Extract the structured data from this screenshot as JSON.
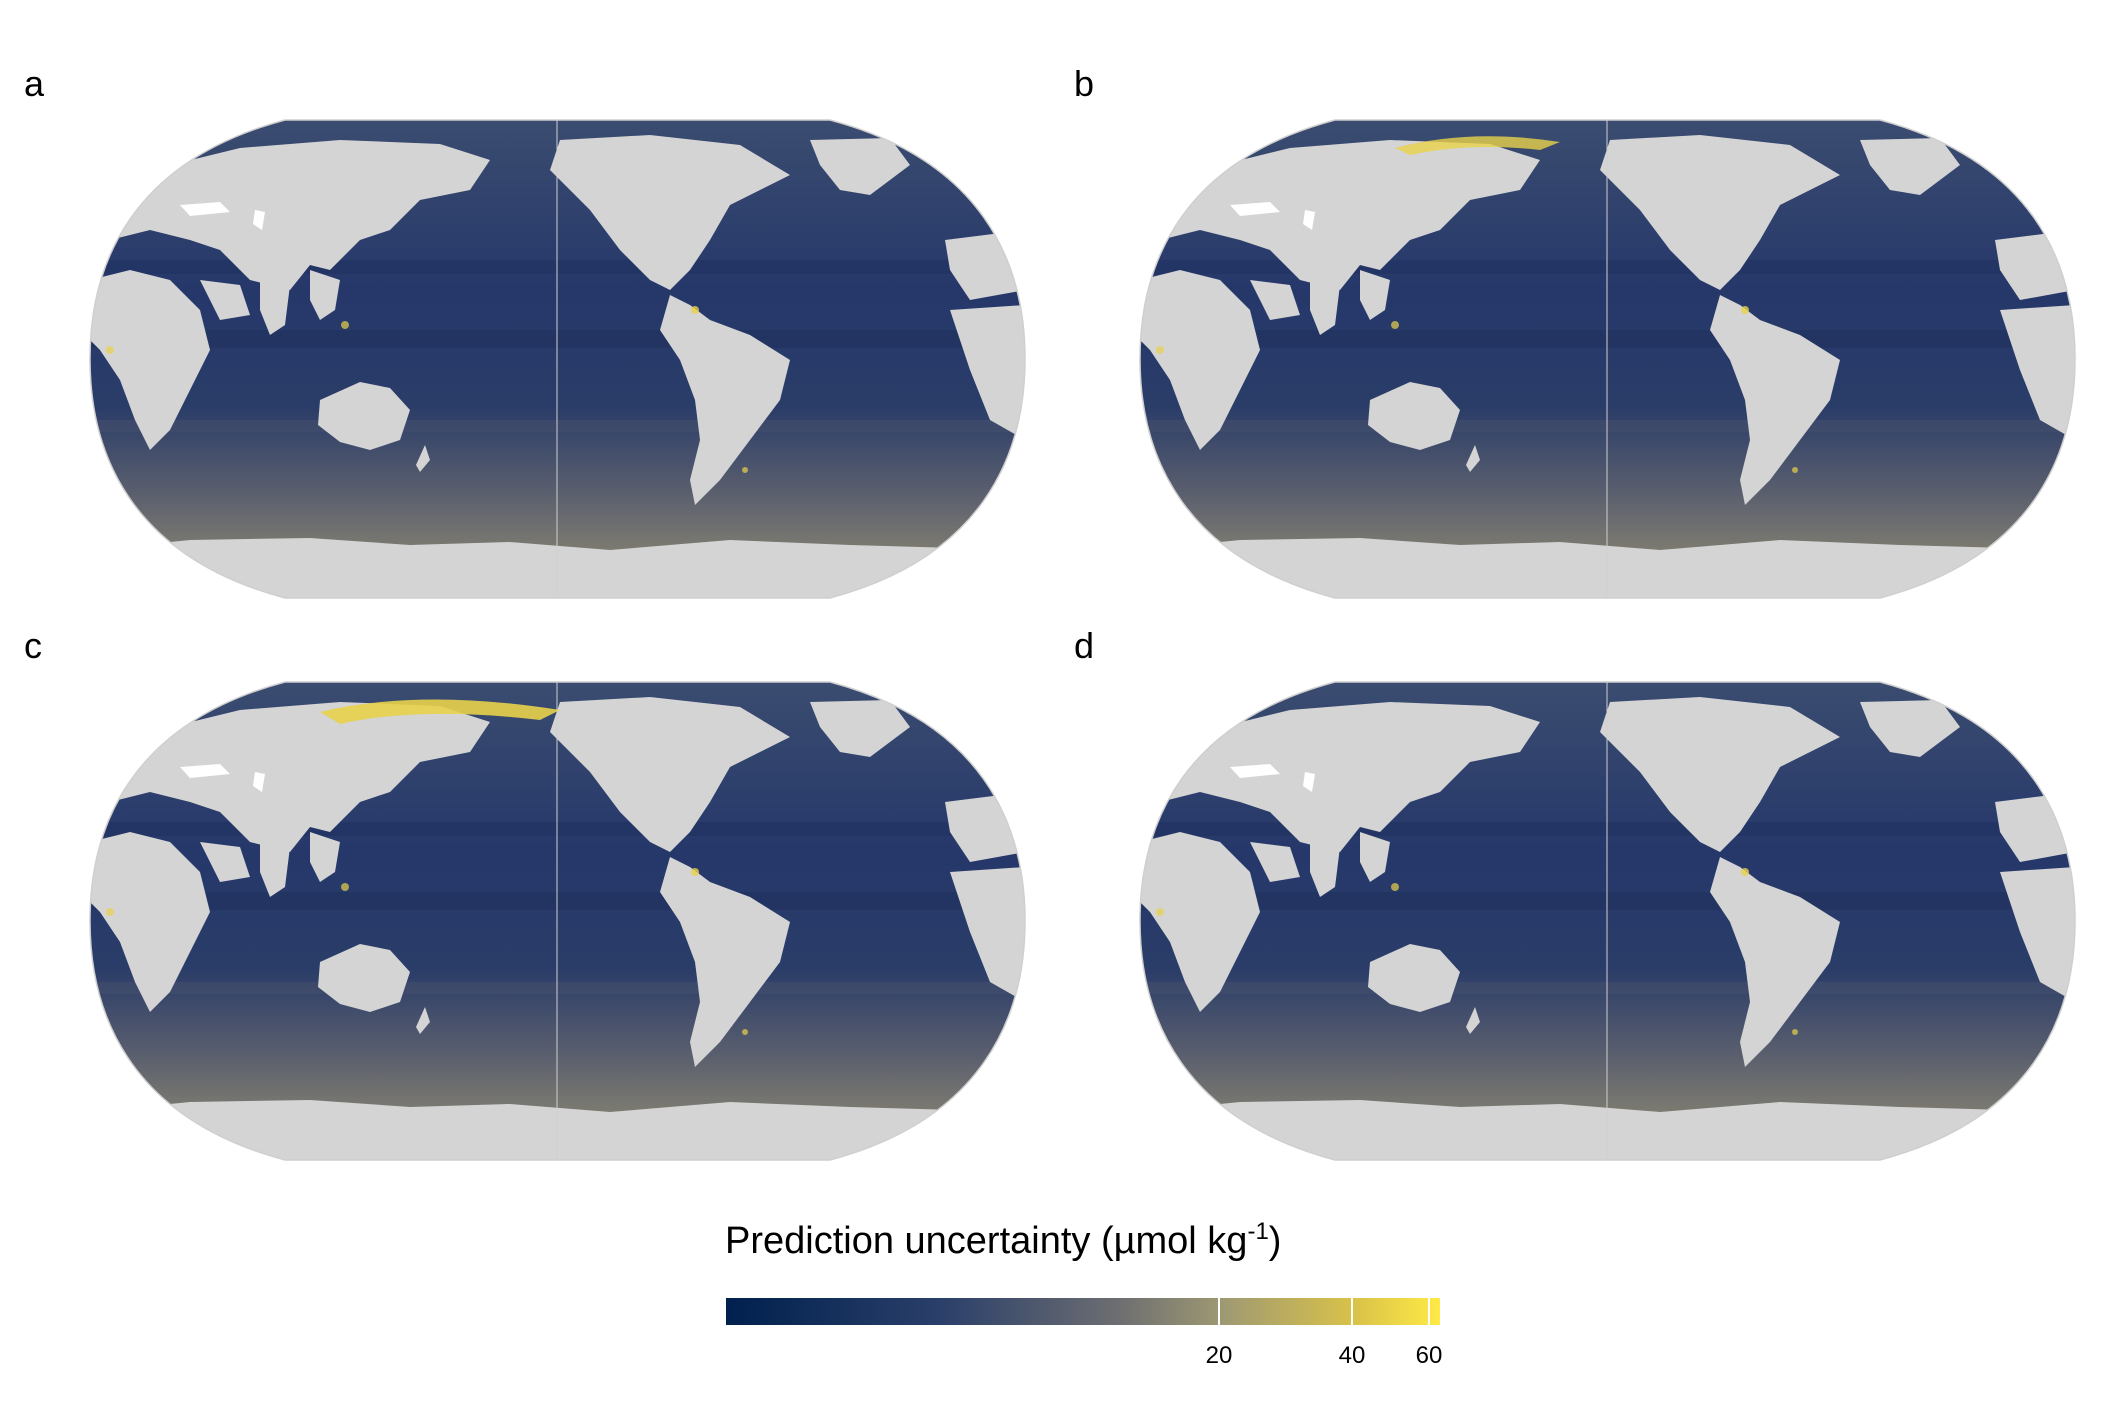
{
  "panels": [
    {
      "letter": "a"
    },
    {
      "letter": "b"
    },
    {
      "letter": "c"
    },
    {
      "letter": "d"
    }
  ],
  "legend": {
    "title_main": "Prediction uncertainty (µmol kg",
    "title_sup": "-1",
    "title_close": ")",
    "ticks": [
      {
        "label": "20",
        "value": 20
      },
      {
        "label": "40",
        "value": 40
      },
      {
        "label": "60",
        "value": 60
      }
    ]
  },
  "colors": {
    "land": "#d4d4d4",
    "ocean_low": "#1c3463",
    "ocean_mid": "#364a72",
    "ocean_south": "#7a7a72",
    "high_uncertainty": "#e8d24a",
    "graticule": "#cfcfcf"
  }
}
